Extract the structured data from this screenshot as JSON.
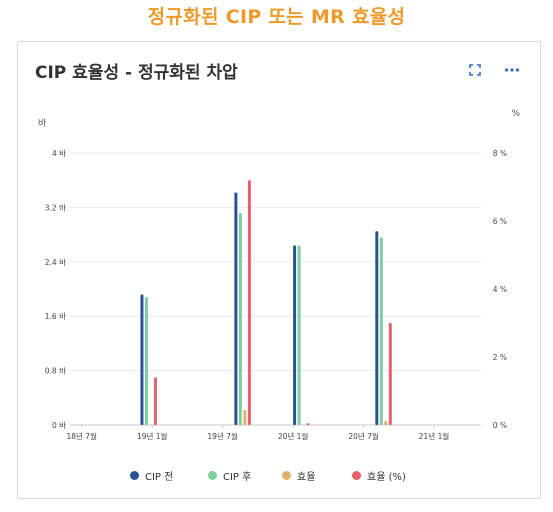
{
  "page_title": "정규화된 CIP 또는 MR 효율성",
  "card": {
    "title": "CIP 효율성 - 정규화된 차압",
    "expand_icon": "expand-icon",
    "more_icon": "more-horizontal-icon"
  },
  "colors": {
    "heading": "#ec9a2a",
    "cip_before": "#2a5196",
    "cip_after": "#7dcfa0",
    "efficiency": "#e0b06e",
    "efficiency_pct": "#e8606c"
  },
  "chart_data": {
    "type": "bar",
    "title": "CIP 효율성 - 정규화된 차압",
    "y_left_label": "바",
    "y_right_label": "%",
    "y_left_ticks": [
      "0 바",
      "0.8 바",
      "1.6 바",
      "2.4 바",
      "3.2 바",
      "4 바"
    ],
    "y_right_ticks": [
      "0 %",
      "2 %",
      "4 %",
      "6 %",
      "8 %"
    ],
    "x_ticks": [
      "18년 7월",
      "19년 1월",
      "19년 7월",
      "20년 1월",
      "20년 7월",
      "21년 1월"
    ],
    "ylim_left": [
      0,
      4
    ],
    "ylim_right": [
      0,
      8
    ],
    "x_range_months": [
      "2018-06",
      "2021-05"
    ],
    "categories": [
      "2018-12",
      "2019-08",
      "2020-01",
      "2020-08"
    ],
    "series": [
      {
        "name": "CIP 전",
        "axis": "left",
        "values": [
          1.92,
          3.42,
          2.64,
          2.85
        ]
      },
      {
        "name": "CIP 후",
        "axis": "left",
        "values": [
          1.88,
          3.12,
          2.64,
          2.76
        ]
      },
      {
        "name": "효율",
        "axis": "left",
        "values": [
          0.0,
          0.22,
          0.0,
          0.06
        ]
      },
      {
        "name": "효율 (%)",
        "axis": "right",
        "values": [
          1.4,
          7.2,
          0.05,
          3.0
        ]
      }
    ],
    "grid": true,
    "legend_position": "bottom"
  }
}
